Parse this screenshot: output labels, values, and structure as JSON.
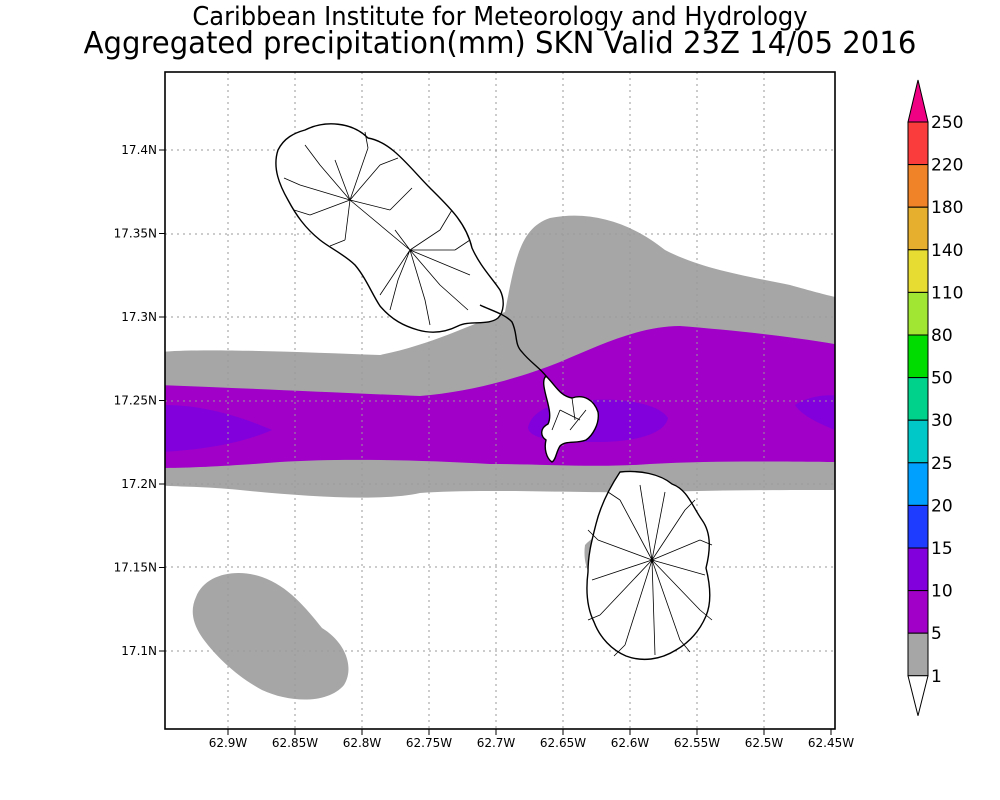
{
  "header": {
    "line1": "Caribbean Institute for Meteorology and Hydrology",
    "line2": "Aggregated precipitation(mm) SKN Valid 23Z 14/05 2016"
  },
  "map": {
    "x_ticks": [
      "62.9W",
      "62.85W",
      "62.8W",
      "62.75W",
      "62.7W",
      "62.65W",
      "62.6W",
      "62.55W",
      "62.5W",
      "62.45W"
    ],
    "y_ticks": [
      "17.4N",
      "17.35N",
      "17.3N",
      "17.25N",
      "17.2N",
      "17.15N",
      "17.1N"
    ],
    "lon_range": [
      "62.95W",
      "62.45W"
    ],
    "lat_range": [
      "17.05N",
      "17.44N"
    ],
    "grid": true
  },
  "colorbar": {
    "levels": [
      "1",
      "5",
      "10",
      "15",
      "20",
      "25",
      "30",
      "50",
      "80",
      "110",
      "140",
      "180",
      "220",
      "250"
    ],
    "colors": [
      "#ffffff",
      "#a6a6a6",
      "#a000c8",
      "#8200dc",
      "#1e3cff",
      "#00a0ff",
      "#00c8c8",
      "#00d28c",
      "#00dc00",
      "#a0e632",
      "#e6dc32",
      "#e6af2d",
      "#f08228",
      "#fa3c3c",
      "#f00082"
    ]
  },
  "legend_colors": {
    "gray": "#a6a6a6",
    "purple": "#a000c8",
    "violet": "#8200dc"
  }
}
